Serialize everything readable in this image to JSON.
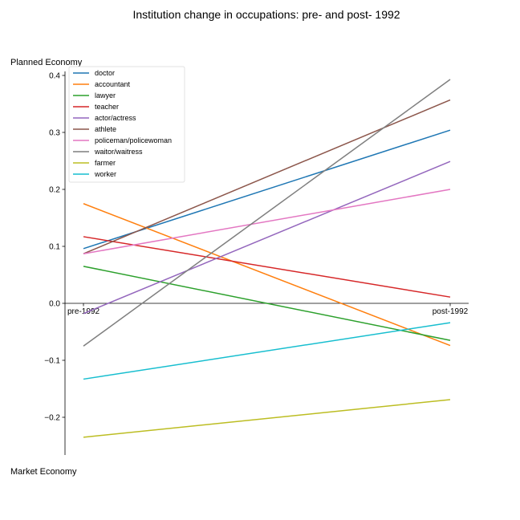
{
  "chart_data": {
    "type": "line",
    "title": "Institution change in occupations: pre- and post- 1992",
    "top_label": "Planned Economy",
    "bottom_label": "Market Economy",
    "categories": [
      "pre-1992",
      "post-1992"
    ],
    "ylim": [
      -0.27,
      0.42
    ],
    "yticks": [
      0.4,
      0.3,
      0.2,
      0.1,
      0.0,
      -0.1,
      -0.2
    ],
    "ytick_labels": [
      "0.4",
      "0.3",
      "0.2",
      "0.1",
      "0.0",
      "−0.1",
      "−0.2"
    ],
    "grid": false,
    "legend_position": "top-left",
    "series": [
      {
        "name": "doctor",
        "values": [
          0.096,
          0.304
        ],
        "color": "#1f77b4"
      },
      {
        "name": "accountant",
        "values": [
          0.175,
          -0.074
        ],
        "color": "#ff7f0e"
      },
      {
        "name": "lawyer",
        "values": [
          0.065,
          -0.065
        ],
        "color": "#2ca02c"
      },
      {
        "name": "teacher",
        "values": [
          0.117,
          0.011
        ],
        "color": "#d62728"
      },
      {
        "name": "actor/actress",
        "values": [
          -0.018,
          0.249
        ],
        "color": "#9467bd"
      },
      {
        "name": "athlete",
        "values": [
          0.087,
          0.357
        ],
        "color": "#8c564b"
      },
      {
        "name": "policeman/policewoman",
        "values": [
          0.087,
          0.2
        ],
        "color": "#e377c2"
      },
      {
        "name": "waitor/waitress",
        "values": [
          -0.075,
          0.393
        ],
        "color": "#7f7f7f"
      },
      {
        "name": "farmer",
        "values": [
          -0.235,
          -0.169
        ],
        "color": "#bcbd22"
      },
      {
        "name": "worker",
        "values": [
          -0.133,
          -0.034
        ],
        "color": "#17becf"
      }
    ]
  }
}
